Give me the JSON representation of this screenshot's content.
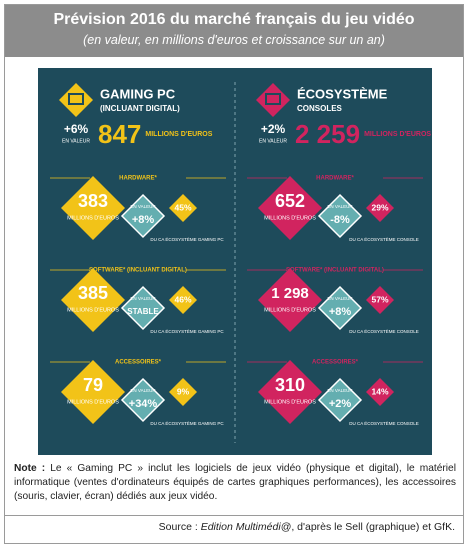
{
  "header": {
    "title": "Prévision 2016 du marché français du jeu vidéo",
    "subtitle": "(en valeur, en millions d'euros et croissance sur un an)"
  },
  "columns": [
    {
      "name": "GAMING PC",
      "subname": "(INCLUANT DIGITAL)",
      "growth": "+6%",
      "growth_label": "EN VALEUR",
      "total": "847",
      "total_unit": "MILLIONS D'EUROS",
      "segments": [
        {
          "label": "HARDWARE*",
          "value": "383",
          "unit": "MILLIONS D'EUROS",
          "growth_label": "EN VALEUR",
          "growth": "+8%",
          "share": "45%",
          "share_label": "DU CA ÉCOSYSTÈME GAMING PC"
        },
        {
          "label": "SOFTWARE* (INCLUANT DIGITAL)",
          "value": "385",
          "unit": "MILLIONS D'EUROS",
          "growth_label": "EN VALEUR",
          "growth": "STABLE",
          "share": "46%",
          "share_label": "DU CA ÉCOSYSTÈME GAMING PC"
        },
        {
          "label": "ACCESSOIRES*",
          "value": "79",
          "unit": "MILLIONS D'EUROS",
          "growth_label": "EN VALEUR",
          "growth": "+34%",
          "share": "9%",
          "share_label": "DU CA ÉCOSYSTÈME GAMING PC"
        }
      ]
    },
    {
      "name": "ÉCOSYSTÈME",
      "subname": "CONSOLES",
      "growth": "+2%",
      "growth_label": "EN VALEUR",
      "total": "2 259",
      "total_unit": "MILLIONS D'EUROS",
      "segments": [
        {
          "label": "HARDWARE*",
          "value": "652",
          "unit": "MILLIONS D'EUROS",
          "growth_label": "EN VALEUR",
          "growth": "-8%",
          "share": "29%",
          "share_label": "DU CA ÉCOSYSTÈME CONSOLE"
        },
        {
          "label": "SOFTWARE* (INCLUANT DIGITAL)",
          "value": "1 298",
          "unit": "MILLIONS D'EUROS",
          "growth_label": "EN VALEUR",
          "growth": "+8%",
          "share": "57%",
          "share_label": "DU CA ÉCOSYSTÈME CONSOLE"
        },
        {
          "label": "ACCESSOIRES*",
          "value": "310",
          "unit": "MILLIONS D'EUROS",
          "growth_label": "EN VALEUR",
          "growth": "+2%",
          "share": "14%",
          "share_label": "DU CA ÉCOSYSTÈME CONSOLE"
        }
      ]
    }
  ],
  "note": {
    "label": "Note :",
    "text": "Le « Gaming PC » inclut les logiciels de jeux vidéo (physique et digital), le matériel informatique (ventes d'ordinateurs équipés de cartes graphiques performances), les accessoires (souris, clavier, écran) dédiés aux jeux vidéo."
  },
  "source": {
    "prefix": "Source :",
    "publication": "Edition Multimédi@",
    "text": ", d'après le Sell (graphique) et GfK."
  }
}
